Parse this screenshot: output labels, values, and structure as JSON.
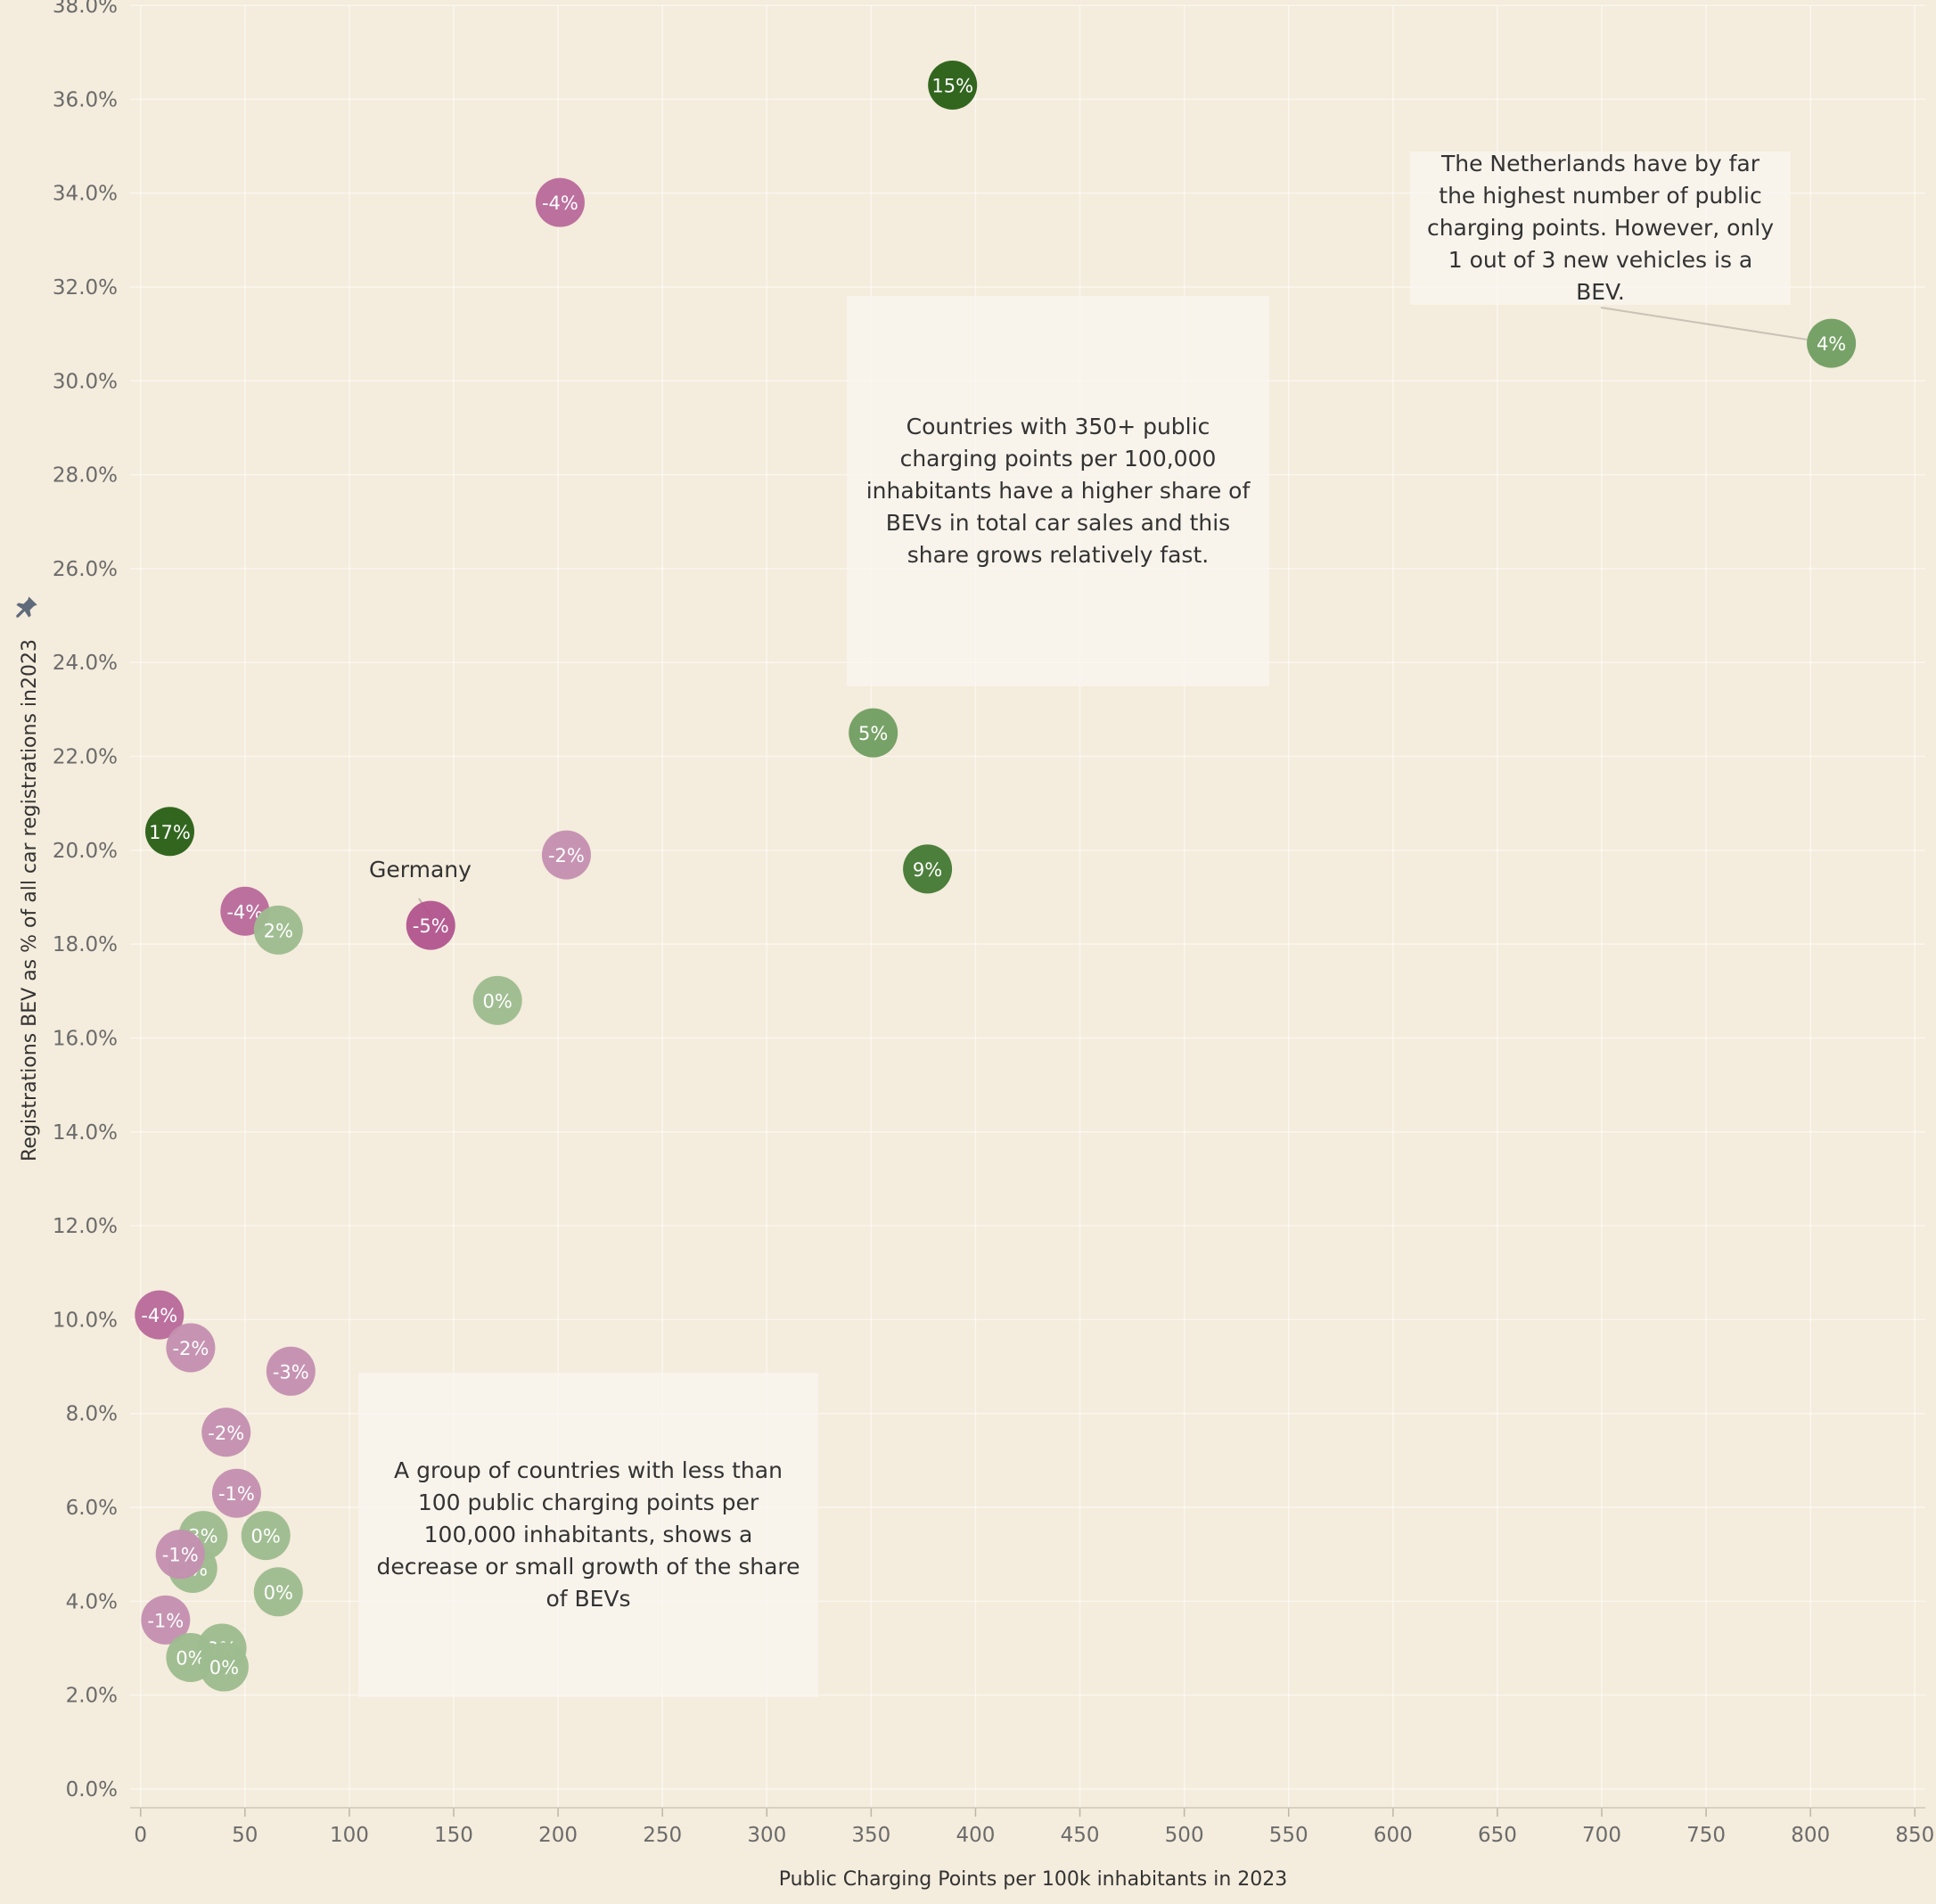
{
  "chart_data": {
    "type": "scatter",
    "title": "",
    "xlabel": "Public Charging Points per 100k inhabitants in 2023",
    "ylabel": "Registrations BEV as % of all  car registrations  in2023",
    "xlim": [
      -5,
      855
    ],
    "ylim": [
      -0.4,
      38.0
    ],
    "x_ticks": [
      0,
      50,
      100,
      150,
      200,
      250,
      300,
      350,
      400,
      450,
      500,
      550,
      600,
      650,
      700,
      750,
      800,
      850
    ],
    "x_tick_labels": [
      "0",
      "50",
      "100",
      "150",
      "200",
      "250",
      "300",
      "350",
      "400",
      "450",
      "500",
      "550",
      "600",
      "650",
      "700",
      "750",
      "800",
      "850"
    ],
    "y_ticks": [
      0,
      2,
      4,
      6,
      8,
      10,
      12,
      14,
      16,
      18,
      20,
      22,
      24,
      26,
      28,
      30,
      32,
      34,
      36,
      38
    ],
    "y_tick_labels": [
      "0.0%",
      "2.0%",
      "4.0%",
      "6.0%",
      "8.0%",
      "10.0%",
      "12.0%",
      "14.0%",
      "16.0%",
      "18.0%",
      "20.0%",
      "22.0%",
      "24.0%",
      "26.0%",
      "28.0%",
      "30.0%",
      "32.0%",
      "34.0%",
      "36.0%",
      "38.0%"
    ],
    "grid": true,
    "points": [
      {
        "x": 389,
        "y": 36.3,
        "label": "15%",
        "growth": 15
      },
      {
        "x": 201,
        "y": 33.8,
        "label": "-4%",
        "growth": -4
      },
      {
        "x": 810,
        "y": 30.8,
        "label": "4%",
        "growth": 4
      },
      {
        "x": 351,
        "y": 22.5,
        "label": "5%",
        "growth": 5
      },
      {
        "x": 14,
        "y": 20.4,
        "label": "17%",
        "growth": 17
      },
      {
        "x": 204,
        "y": 19.9,
        "label": "-2%",
        "growth": -2
      },
      {
        "x": 377,
        "y": 19.6,
        "label": "9%",
        "growth": 9
      },
      {
        "x": 50,
        "y": 18.7,
        "label": "-4%",
        "growth": -4
      },
      {
        "x": 66,
        "y": 18.3,
        "label": "2%",
        "growth": 2
      },
      {
        "x": 139,
        "y": 18.4,
        "label": "-5%",
        "growth": -5
      },
      {
        "x": 171,
        "y": 16.8,
        "label": "0%",
        "growth": 0
      },
      {
        "x": 9,
        "y": 10.1,
        "label": "-4%",
        "growth": -4
      },
      {
        "x": 24,
        "y": 9.4,
        "label": "-2%",
        "growth": -2
      },
      {
        "x": 72,
        "y": 8.9,
        "label": "-3%",
        "growth": -3
      },
      {
        "x": 41,
        "y": 7.6,
        "label": "-2%",
        "growth": -2
      },
      {
        "x": 46,
        "y": 6.3,
        "label": "-1%",
        "growth": -1
      },
      {
        "x": 30,
        "y": 5.4,
        "label": "3%",
        "growth": 3
      },
      {
        "x": 60,
        "y": 5.4,
        "label": "0%",
        "growth": 0
      },
      {
        "x": 25,
        "y": 4.7,
        "label": "2%",
        "growth": 2
      },
      {
        "x": 19,
        "y": 5.0,
        "label": "-1%",
        "growth": -1
      },
      {
        "x": 66,
        "y": 4.2,
        "label": "0%",
        "growth": 0
      },
      {
        "x": 12,
        "y": 3.6,
        "label": "-1%",
        "growth": -1
      },
      {
        "x": 39,
        "y": 3.0,
        "label": "2%",
        "growth": 2
      },
      {
        "x": 24,
        "y": 2.8,
        "label": "0%",
        "growth": 0
      },
      {
        "x": 40,
        "y": 2.6,
        "label": "0%",
        "growth": 0
      }
    ],
    "colors": {
      "growth_high": "#2a6017",
      "growth_mid": "#457a34",
      "growth_positive": "#719e62",
      "growth_small": "#9dbb8f",
      "decline_small": "#c490b0",
      "decline_mid": "#b96a9b",
      "decline_strong": "#b2558f"
    },
    "annotations": [
      {
        "id": "netherlands",
        "text": "The Netherlands have by far the highest number of public charging points. However, only 1 out of 3 new vehicles is a BEV.",
        "target_point": 2
      },
      {
        "id": "high-group",
        "text": "Countries with 350+ public charging points per 100,000 inhabitants have a higher share of BEVs in total car sales and this share grows relatively fast."
      },
      {
        "id": "low-group",
        "text": "A group of countries with less than 100 public charging points per 100,000 inhabitants, shows a decrease or small growth of the share of BEVs"
      },
      {
        "id": "germany",
        "text": "Germany",
        "target_point": 9
      }
    ]
  }
}
